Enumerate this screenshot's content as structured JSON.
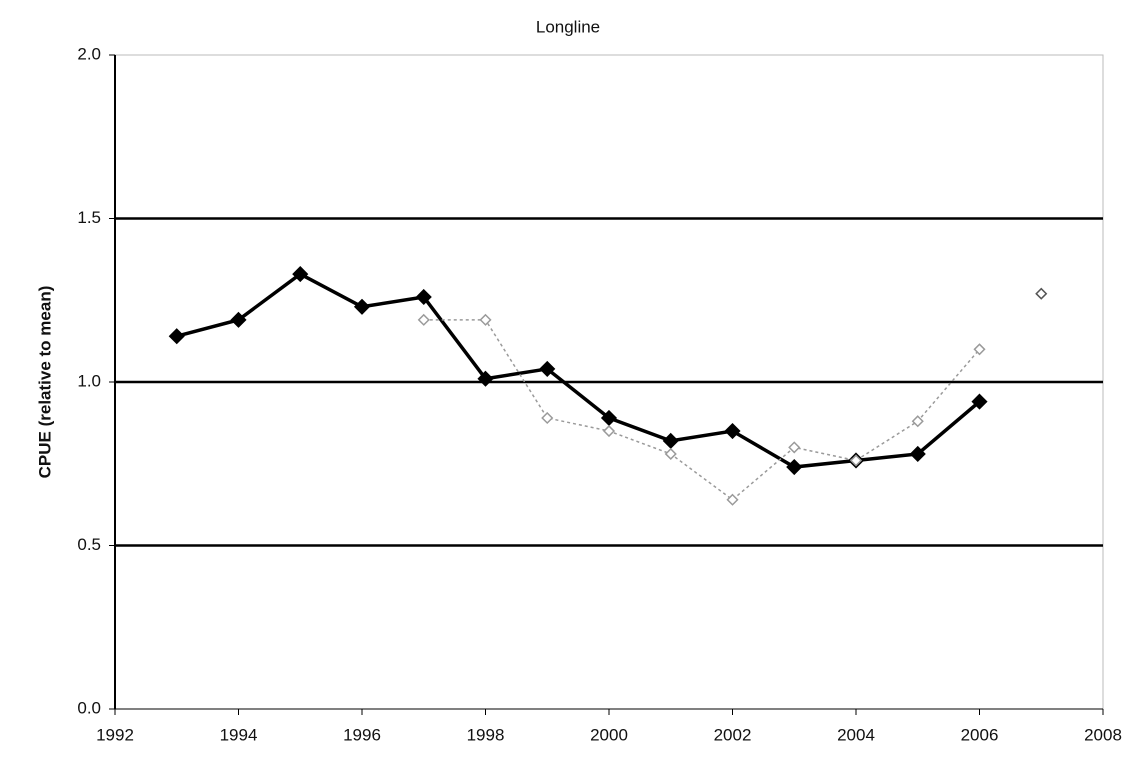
{
  "chart_data": {
    "type": "line",
    "title": "Longline",
    "y_label": "CPUE (relative to mean)",
    "x": [
      1993,
      1994,
      1995,
      1996,
      1997,
      1998,
      1999,
      2000,
      2001,
      2002,
      2003,
      2004,
      2005,
      2006,
      2007
    ],
    "series": [
      {
        "color": "#000000",
        "marker": "filled",
        "dash": false,
        "values": [
          1.14,
          1.19,
          1.33,
          1.23,
          1.26,
          1.01,
          1.04,
          0.89,
          0.82,
          0.85,
          0.74,
          0.76,
          0.78,
          0.94,
          null
        ]
      },
      {
        "color": "#9a9a9a",
        "marker": "hollow",
        "dash": true,
        "values": [
          null,
          null,
          null,
          null,
          1.19,
          1.19,
          0.89,
          0.85,
          0.78,
          0.64,
          0.8,
          0.76,
          0.88,
          1.1,
          null
        ]
      },
      {
        "color": "#555555",
        "marker": "hollow",
        "dash": false,
        "values": [
          null,
          null,
          null,
          null,
          null,
          null,
          null,
          null,
          null,
          null,
          null,
          null,
          null,
          null,
          1.27
        ]
      }
    ],
    "xlim": [
      1992,
      2008
    ],
    "xticks": [
      1992,
      1994,
      1996,
      1998,
      2000,
      2002,
      2004,
      2006,
      2008
    ],
    "ylim": [
      0,
      2
    ],
    "yticks": [
      {
        "value": 0,
        "label": "0.0"
      },
      0.5,
      {
        "value": 1,
        "label": "1.0"
      },
      1.5,
      {
        "value": 2,
        "label": "2.0"
      }
    ],
    "grid": true
  }
}
